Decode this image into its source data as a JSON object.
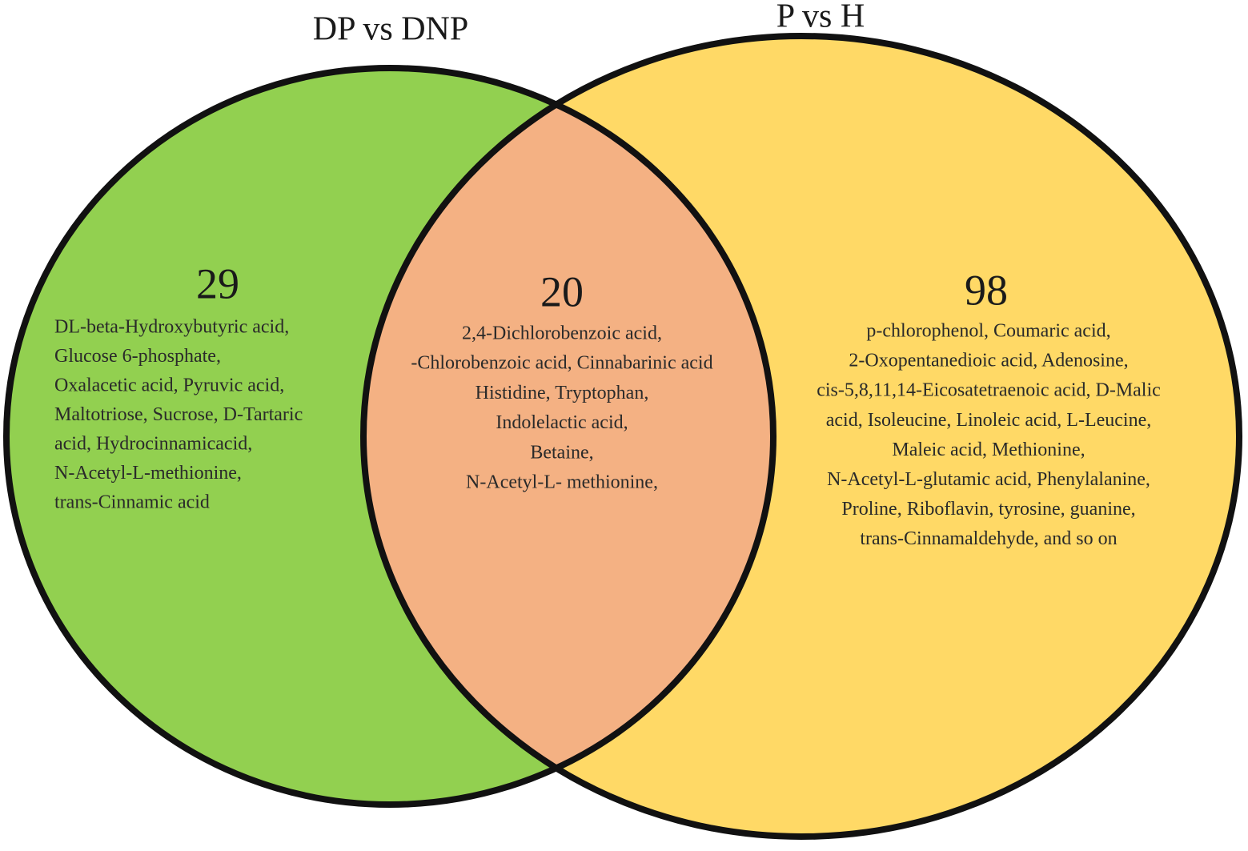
{
  "diagram": {
    "left": {
      "title": "DP vs DNP",
      "count": 29,
      "lines": [
        "DL-beta-Hydroxybutyric acid,",
        "Glucose 6-phosphate,",
        "Oxalacetic acid, Pyruvic acid,",
        "Maltotriose, Sucrose, D-Tartaric",
        "acid, Hydrocinnamicacid,",
        "N-Acetyl-L-methionine,",
        "trans-Cinnamic acid"
      ]
    },
    "overlap": {
      "count": 20,
      "lines": [
        "2,4-Dichlorobenzoic acid,",
        "-Chlorobenzoic acid, Cinnabarinic acid",
        "Histidine, Tryptophan,",
        "Indolelactic acid,",
        "Betaine,",
        "N-Acetyl-L- methionine,"
      ]
    },
    "right": {
      "title": "P vs H",
      "count": 98,
      "lines": [
        "p-chlorophenol, Coumaric acid,",
        "2-Oxopentanedioic acid, Adenosine,",
        "cis-5,8,11,14-Eicosatetraenoic acid, D-Malic",
        "acid,  Isoleucine, Linoleic acid, L-Leucine,",
        "Maleic acid, Methionine,",
        "N-Acetyl-L-glutamic acid, Phenylalanine,",
        "Proline, Riboflavin, tyrosine, guanine,",
        "trans-Cinnamaldehyde, and so on"
      ]
    }
  }
}
